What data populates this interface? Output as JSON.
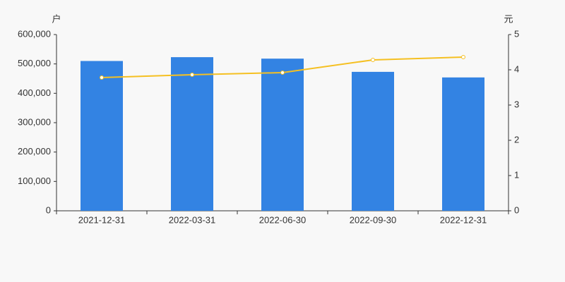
{
  "chart_data": {
    "type": "bar",
    "y_label": "户",
    "y2_label": "元",
    "categories": [
      "2021-12-31",
      "2022-03-31",
      "2022-06-30",
      "2022-09-30",
      "2022-12-31"
    ],
    "series": [
      {
        "type": "bar",
        "color": "#3383e3",
        "values": [
          510000,
          523000,
          518000,
          473000,
          454000
        ]
      },
      {
        "type": "line",
        "axis": "y2",
        "color": "#f5c022",
        "values": [
          3.78,
          3.86,
          3.92,
          4.28,
          4.36
        ]
      }
    ],
    "ylim": [
      0,
      600000
    ],
    "yticks": [
      0,
      {
        "value": 100000,
        "label": "100,000"
      },
      {
        "value": 200000,
        "label": "200,000"
      },
      {
        "value": 300000,
        "label": "300,000"
      },
      {
        "value": 400000,
        "label": "400,000"
      },
      {
        "value": 500000,
        "label": "500,000"
      },
      {
        "value": 600000,
        "label": "600,000"
      }
    ],
    "y2lim": [
      0,
      5
    ],
    "y2ticks": [
      0,
      1,
      2,
      3,
      4,
      5
    ]
  }
}
